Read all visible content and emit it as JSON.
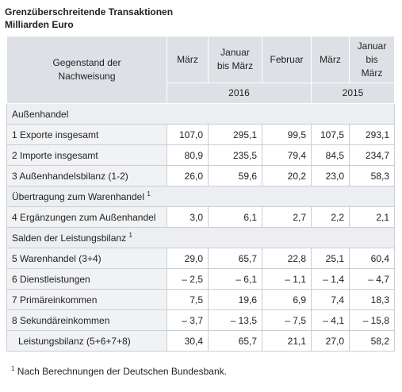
{
  "title": "Grenzüberschreitende Transaktionen",
  "subtitle": "Milliarden Euro",
  "table": {
    "header": {
      "label": "Gegenstand der Nachweisung",
      "columns": [
        "März",
        "Januar bis März",
        "Februar",
        "März",
        "Januar bis März"
      ],
      "years": [
        "2016",
        "2015"
      ]
    },
    "sections": [
      {
        "name": "Außenhandel",
        "rows": [
          {
            "label": "1 Exporte insgesamt",
            "cells": [
              "107,0",
              "295,1",
              "99,5",
              "107,5",
              "293,1"
            ]
          },
          {
            "label": "2 Importe insgesamt",
            "cells": [
              "80,9",
              "235,5",
              "79,4",
              "84,5",
              "234,7"
            ]
          },
          {
            "label": "3 Außenhandelsbilanz (1-2)",
            "cells": [
              "26,0",
              "59,6",
              "20,2",
              "23,0",
              "58,3"
            ]
          }
        ]
      },
      {
        "name": "Übertragung zum Warenhandel",
        "note": "1",
        "rows": [
          {
            "label": "4 Ergänzungen zum Außenhandel",
            "cells": [
              "3,0",
              "6,1",
              "2,7",
              "2,2",
              "2,1"
            ]
          }
        ]
      },
      {
        "name": "Salden der Leistungsbilanz",
        "note": "1",
        "rows": [
          {
            "label": "5 Warenhandel (3+4)",
            "cells": [
              "29,0",
              "65,7",
              "22,8",
              "25,1",
              "60,4"
            ]
          },
          {
            "label": "6 Dienstleistungen",
            "cells": [
              "– 2,5",
              "– 6,1",
              "– 1,1",
              "– 1,4",
              "– 4,7"
            ]
          },
          {
            "label": "7 Primäreinkommen",
            "cells": [
              "7,5",
              "19,6",
              "6,9",
              "7,4",
              "18,3"
            ]
          },
          {
            "label": "8 Sekundäreinkommen",
            "cells": [
              "– 3,7",
              "– 13,5",
              "– 7,5",
              "– 4,1",
              "– 15,8"
            ]
          },
          {
            "label": "Leistungsbilanz (5+6+7+8)",
            "indent": true,
            "cells": [
              "30,4",
              "65,7",
              "21,1",
              "27,0",
              "58,2"
            ]
          }
        ]
      }
    ]
  },
  "footnote": {
    "marker": "1",
    "text": "Nach Berechnungen der Deutschen Bundesbank."
  }
}
